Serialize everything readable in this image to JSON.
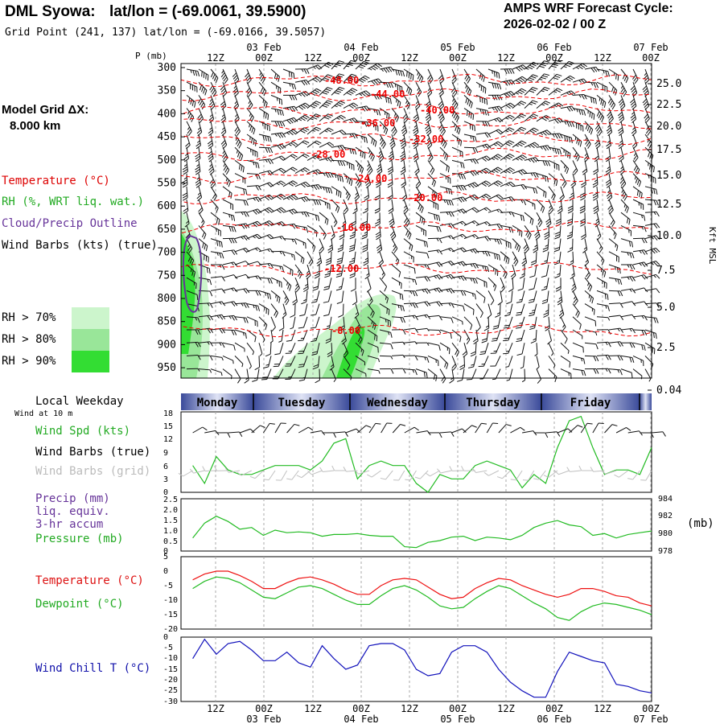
{
  "header": {
    "station": "DML Syowa:",
    "latlon": "lat/lon = (-69.0061, 39.5900)",
    "grid_point": "Grid Point (241, 137) lat/lon = (-69.0166, 39.5057)",
    "forecast_title": "AMPS WRF Forecast Cycle:",
    "forecast_cycle": "2026-02-02 / 00  Z",
    "model_grid_label": "Model Grid ΔX:",
    "model_grid_value": "8.000 km"
  },
  "legend": {
    "temperature": "Temperature (°C)",
    "rh": "RH (%, WRT liq. wat.)",
    "cloud": "Cloud/Precip Outline",
    "wind": "Wind Barbs (kts) (true)",
    "rh70": "RH > 70%",
    "rh80": "RH > 80%",
    "rh90": "RH > 90%",
    "colors": {
      "rh70": "#ccf5cc",
      "rh80": "#99e699",
      "rh90": "#33dd33",
      "temp": "#ee0000",
      "cloud": "#663399"
    }
  },
  "colors": {
    "wind_spd": "#22bb22",
    "pressure": "#22bb22",
    "temperature": "#ee1111",
    "dewpoint": "#22bb22",
    "wind_chill": "#1111bb",
    "barb_grid": "#c0c0c0"
  },
  "time_axis": {
    "top_dates": [
      "03 Feb",
      "04 Feb",
      "05 Feb",
      "06 Feb",
      "07 Feb"
    ],
    "hour_labels": [
      "12Z",
      "00Z",
      "12Z",
      "00Z",
      "12Z",
      "00Z",
      "12Z",
      "00Z",
      "12Z",
      "00Z"
    ],
    "bottom_dates": [
      "03 Feb",
      "04 Feb",
      "05 Feb",
      "06 Feb",
      "07 Feb"
    ]
  },
  "weekday_bar": {
    "title": "Local Weekday",
    "days": [
      "Monday",
      "Tuesday",
      "Wednesday",
      "Thursday",
      "Friday"
    ]
  },
  "cross_section": {
    "p_label": "P (mb)",
    "height_label": "Kft MSL",
    "pressure_levels": [
      "300",
      "350",
      "400",
      "450",
      "500",
      "550",
      "600",
      "650",
      "700",
      "750",
      "800",
      "850",
      "900",
      "950"
    ],
    "height_ticks": [
      "25.0",
      "22.5",
      "20.0",
      "17.5",
      "15.0",
      "12.5",
      "10.0",
      "7.5",
      "5.0",
      "2.5",
      "0.04"
    ],
    "temp_contour_labels": [
      "-48.00",
      "-44.00",
      "-40.00",
      "-36.00",
      "-32.00",
      "-28.00",
      "-24.00",
      "-20.00",
      "-16.00",
      "-12.00",
      "-8.00"
    ]
  },
  "panels": {
    "wind": {
      "wind_at": "Wind at 10 m",
      "spd_label": "Wind Spd (kts)",
      "barbs_true": "Wind Barbs (true)",
      "barbs_grid": "Wind Barbs (grid)",
      "yticks": [
        "18",
        "15",
        "12",
        "9",
        "6",
        "3",
        "0"
      ]
    },
    "precip": {
      "precip": "Precip (mm)",
      "liq": "liq. equiv.",
      "accum": "3-hr accum",
      "pressure": "Pressure (mb)",
      "unit_right": "(mb)",
      "yticks": [
        "2.5",
        "2.0",
        "1.5",
        "1.0",
        "0.5",
        "0"
      ],
      "yticks_right": [
        "984",
        "982",
        "980",
        "978"
      ]
    },
    "temp": {
      "temperature": "Temperature (°C)",
      "dewpoint": "Dewpoint (°C)",
      "yticks": [
        "5",
        "0",
        "-5",
        "-10",
        "-15",
        "-20"
      ]
    },
    "chill": {
      "wind_chill": "Wind Chill T (°C)",
      "yticks": [
        "0",
        "-5",
        "-10",
        "-15",
        "-20",
        "-25",
        "-30"
      ]
    }
  },
  "chart_data": {
    "type": "line",
    "x_unit": "forecast hour",
    "x": [
      3,
      6,
      9,
      12,
      15,
      18,
      21,
      24,
      27,
      30,
      33,
      36,
      39,
      42,
      45,
      48,
      51,
      54,
      57,
      60,
      63,
      66,
      69,
      72,
      75,
      78,
      81,
      84,
      87,
      90,
      93,
      96,
      99,
      102,
      105,
      108,
      111,
      114,
      117,
      120
    ],
    "series": [
      {
        "name": "Wind Spd (kts)",
        "panel": "wind",
        "ylim": [
          0,
          18
        ],
        "values": [
          6,
          2,
          8,
          5,
          4,
          4,
          5,
          6,
          6,
          6,
          5,
          7,
          11,
          12,
          3,
          6,
          7,
          6,
          6,
          2,
          0,
          4,
          3,
          3,
          6,
          7,
          6,
          5,
          1,
          4,
          2,
          10,
          16,
          17,
          10,
          4,
          5,
          5,
          4,
          10
        ]
      },
      {
        "name": "Pressure (mb)",
        "panel": "precip",
        "ylim": [
          978,
          984
        ],
        "values": [
          979.5,
          981.2,
          982,
          981.4,
          980.5,
          980.7,
          979.8,
          980.4,
          980.1,
          980.2,
          980.1,
          979.7,
          979.9,
          979.9,
          980,
          979.8,
          979.7,
          979.7,
          978.5,
          978.4,
          979,
          979.2,
          979.6,
          979.7,
          979.2,
          979.6,
          979.5,
          979.3,
          979.8,
          980.7,
          981.2,
          981.5,
          981,
          980.8,
          979.8,
          980,
          979.5,
          979.9,
          980.1,
          980.3
        ]
      },
      {
        "name": "Temperature (°C)",
        "panel": "temp",
        "ylim": [
          -20,
          5
        ],
        "values": [
          -3,
          -1,
          0,
          0,
          -1.5,
          -3.5,
          -6,
          -6,
          -4,
          -2.5,
          -2,
          -3,
          -4.5,
          -6.5,
          -8,
          -8,
          -5,
          -3,
          -2.5,
          -3,
          -5.5,
          -8,
          -9.5,
          -9,
          -6,
          -4,
          -2.5,
          -3,
          -5,
          -6.5,
          -8,
          -9,
          -8,
          -6,
          -6,
          -7,
          -8.5,
          -9,
          -11,
          -12
        ]
      },
      {
        "name": "Dewpoint (°C)",
        "panel": "temp",
        "ylim": [
          -20,
          5
        ],
        "values": [
          -6,
          -3.5,
          -2,
          -2.5,
          -4,
          -6.5,
          -9,
          -9.5,
          -7.5,
          -5.5,
          -5,
          -6,
          -8,
          -10,
          -11.5,
          -11.5,
          -8.5,
          -6,
          -5,
          -6.5,
          -9,
          -12,
          -13,
          -12.5,
          -9.5,
          -7,
          -5,
          -6,
          -8.5,
          -11,
          -13,
          -16,
          -17,
          -14,
          -12,
          -11,
          -11.5,
          -12.5,
          -13.5,
          -15
        ]
      },
      {
        "name": "Wind Chill T (°C)",
        "panel": "chill",
        "ylim": [
          -30,
          0
        ],
        "values": [
          -10,
          -1,
          -8,
          -3,
          -2,
          -6,
          -11,
          -11,
          -7,
          -12,
          -14,
          -4,
          -10,
          -15,
          -13,
          -4,
          -3,
          -3,
          -6,
          -15,
          -18,
          -17,
          -7,
          -4,
          -4,
          -7,
          -15,
          -21,
          -25,
          -28,
          -28,
          -16,
          -7,
          -9,
          -11,
          -12,
          -22,
          -23,
          -25,
          -26
        ]
      }
    ]
  }
}
